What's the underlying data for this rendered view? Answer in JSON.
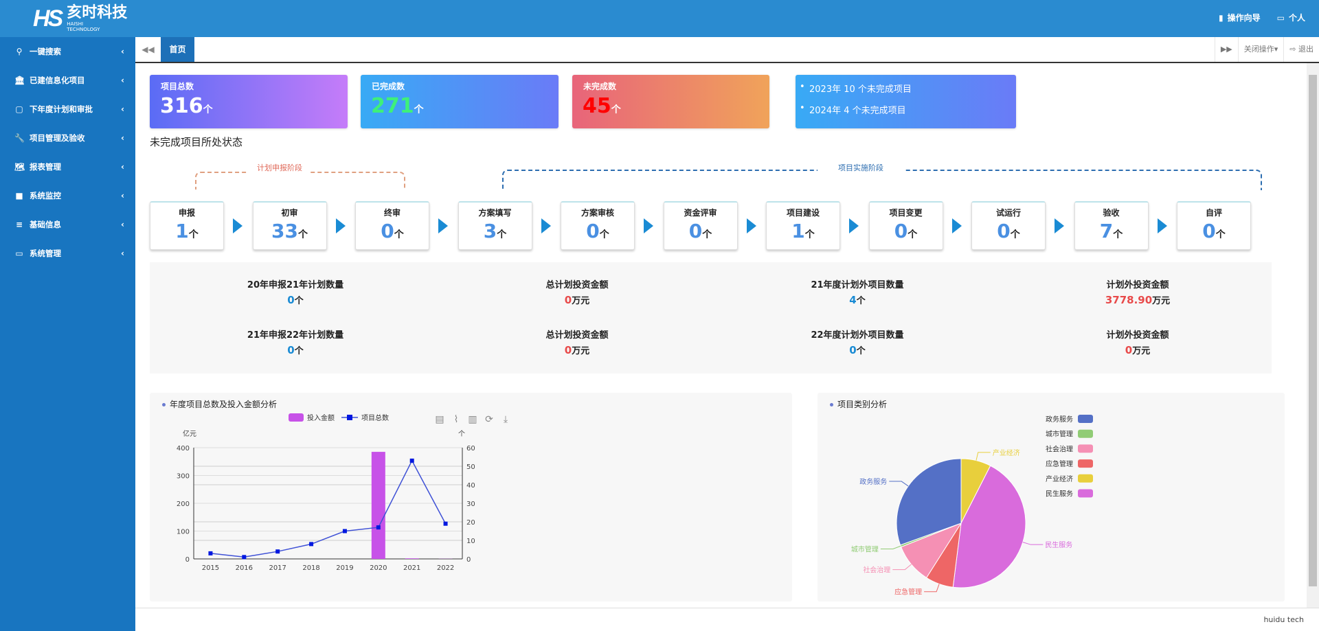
{
  "header": {
    "brand_cn": "亥时科技",
    "brand_en1": "HAISHI",
    "brand_en2": "TECHNOLOGY",
    "logo_mark": "HS",
    "guide": "操作向导",
    "personal": "个人"
  },
  "sidebar": {
    "items": [
      {
        "label": "一键搜索",
        "icon": "search-icon",
        "glyph": "⚲"
      },
      {
        "label": "已建信息化项目",
        "icon": "bank-icon",
        "glyph": "🏛"
      },
      {
        "label": "下年度计划和审批",
        "icon": "note-icon",
        "glyph": "▢"
      },
      {
        "label": "项目管理及验收",
        "icon": "wrench-icon",
        "glyph": "🔧"
      },
      {
        "label": "报表管理",
        "icon": "map-icon",
        "glyph": "🗺"
      },
      {
        "label": "系统监控",
        "icon": "video-icon",
        "glyph": "■"
      },
      {
        "label": "基础信息",
        "icon": "list-icon",
        "glyph": "≡"
      },
      {
        "label": "系统管理",
        "icon": "desktop-icon",
        "glyph": "▭"
      }
    ]
  },
  "tabs": {
    "home": "首页",
    "close_ops": "关闭操作▾",
    "logout": "退出"
  },
  "cards": [
    {
      "label": "项目总数",
      "value": "316",
      "unit": "个",
      "value_color": "#ffffff"
    },
    {
      "label": "已完成数",
      "value": "271",
      "unit": "个",
      "value_color": "#3ef07a"
    },
    {
      "label": "未完成数",
      "value": "45",
      "unit": "个",
      "value_color": "#ff0000"
    }
  ],
  "notes": [
    "2023年 10 个未完成项目",
    "2024年 4 个未完成项目"
  ],
  "status": {
    "title": "未完成项目所处状态",
    "phase_plan": "计划申报阶段",
    "phase_impl": "项目实施阶段",
    "steps": [
      {
        "label": "申报",
        "value": "1"
      },
      {
        "label": "初审",
        "value": "33"
      },
      {
        "label": "终审",
        "value": "0"
      },
      {
        "label": "方案填写",
        "value": "3"
      },
      {
        "label": "方案审核",
        "value": "0"
      },
      {
        "label": "资金评审",
        "value": "0"
      },
      {
        "label": "项目建设",
        "value": "1"
      },
      {
        "label": "项目变更",
        "value": "0"
      },
      {
        "label": "试运行",
        "value": "0"
      },
      {
        "label": "验收",
        "value": "7"
      },
      {
        "label": "自评",
        "value": "0"
      }
    ],
    "unit": "个"
  },
  "stats": [
    {
      "label": "20年申报21年计划数量",
      "value": "0",
      "unit": "个",
      "color": "#1a8bd4"
    },
    {
      "label": "总计划投资金额",
      "value": "0",
      "unit": "万元",
      "color": "#e84a4a"
    },
    {
      "label": "21年度计划外项目数量",
      "value": "4",
      "unit": "个",
      "color": "#1a8bd4"
    },
    {
      "label": "计划外投资金额",
      "value": "3778.90",
      "unit": "万元",
      "color": "#e84a4a"
    },
    {
      "label": "21年申报22年计划数量",
      "value": "0",
      "unit": "个",
      "color": "#1a8bd4"
    },
    {
      "label": "总计划投资金额",
      "value": "0",
      "unit": "万元",
      "color": "#e84a4a"
    },
    {
      "label": "22年度计划外项目数量",
      "value": "0",
      "unit": "个",
      "color": "#1a8bd4"
    },
    {
      "label": "计划外投资金额",
      "value": "0",
      "unit": "万元",
      "color": "#e84a4a"
    }
  ],
  "chart_data": [
    {
      "type": "bar+line",
      "title": "年度项目总数及投入金额分析",
      "categories": [
        "2015",
        "2016",
        "2017",
        "2018",
        "2019",
        "2020",
        "2021",
        "2022"
      ],
      "series": [
        {
          "name": "投入金额",
          "type": "bar",
          "axis": "left",
          "color": "#c752e8",
          "values": [
            0,
            0,
            0,
            0,
            0,
            385,
            2,
            0.5
          ]
        },
        {
          "name": "项目总数",
          "type": "line",
          "axis": "right",
          "color": "#3f51d6",
          "values": [
            3,
            1,
            4,
            8,
            15,
            17,
            53,
            19
          ]
        }
      ],
      "ylabel_left": "亿元",
      "ylabel_right": "个",
      "ylim_left": [
        0,
        400
      ],
      "ylim_right": [
        0,
        60
      ],
      "yticks_left": [
        0,
        100,
        200,
        300,
        400
      ],
      "yticks_right": [
        0,
        10,
        20,
        30,
        40,
        50,
        60
      ],
      "grid": true,
      "legend": "top-center",
      "toolbox": [
        "data-view-icon",
        "line-icon",
        "bar-icon",
        "refresh-icon",
        "download-icon"
      ]
    },
    {
      "type": "pie",
      "title": "项目类别分析",
      "legend": "top-right",
      "slices": [
        {
          "name": "政务服务",
          "value": 30.5,
          "color": "#5470c6"
        },
        {
          "name": "城市管理",
          "value": 0.5,
          "color": "#91cc75"
        },
        {
          "name": "社会治理",
          "value": 10,
          "color": "#f590b4"
        },
        {
          "name": "应急管理",
          "value": 7,
          "color": "#ee6666"
        },
        {
          "name": "产业经济",
          "value": 7.5,
          "color": "#e8cf3c"
        },
        {
          "name": "民生服务",
          "value": 44.5,
          "color": "#d96bdc"
        }
      ]
    }
  ],
  "footer": "huidu tech"
}
